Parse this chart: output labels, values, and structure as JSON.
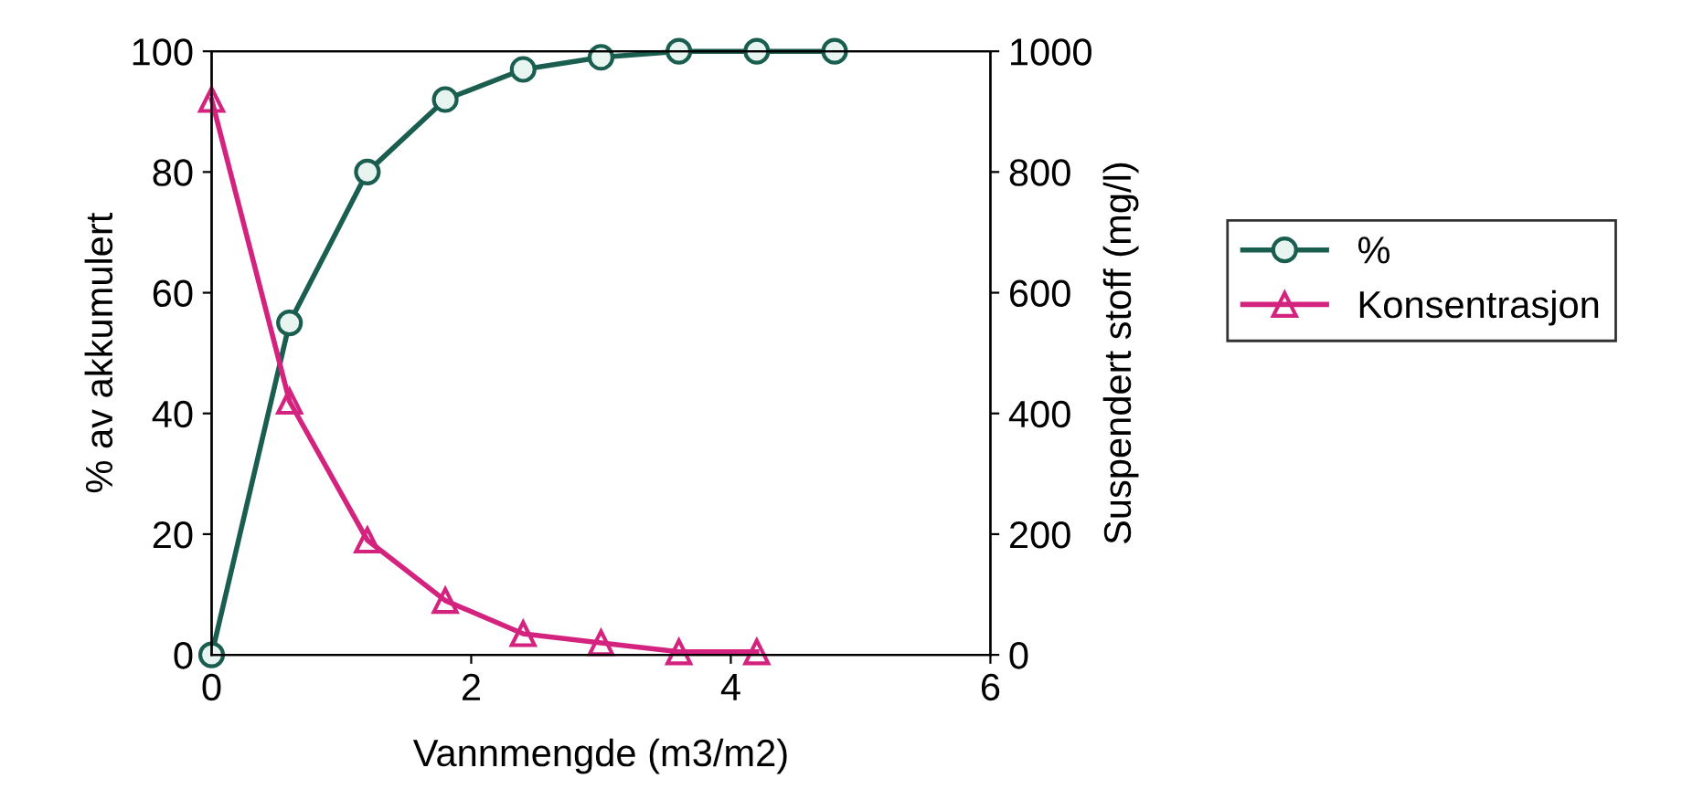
{
  "chart_data": {
    "type": "line",
    "xlabel": "Vannmengde (m3/m2)",
    "ylabel": "% av akkumulert",
    "y2label": "Suspendert stoff (mg/l)",
    "xlim": [
      0,
      6
    ],
    "xticks": [
      0,
      2,
      4,
      6
    ],
    "ylim": [
      0,
      100
    ],
    "yticks": [
      0,
      20,
      40,
      60,
      80,
      100
    ],
    "y2lim": [
      0,
      1000
    ],
    "y2ticks": [
      0,
      200,
      400,
      600,
      800,
      1000
    ],
    "grid": false,
    "legend": "right",
    "series": [
      {
        "name": "%",
        "color": "#1a5e50",
        "marker": "circle",
        "x": [
          0,
          0.6,
          1.2,
          1.8,
          2.4,
          3.0,
          3.6,
          4.2,
          4.8
        ],
        "values": [
          0,
          55,
          80,
          92,
          97,
          99,
          100,
          100,
          100
        ]
      },
      {
        "name": "Konsentrasjon",
        "color": "#d4237f",
        "marker": "triangle",
        "axis": "y2",
        "x": [
          0,
          0.6,
          1.2,
          1.8,
          2.4,
          3.0,
          3.6,
          4.2
        ],
        "values": [
          920,
          420,
          190,
          90,
          35,
          20,
          5,
          5
        ]
      }
    ]
  }
}
